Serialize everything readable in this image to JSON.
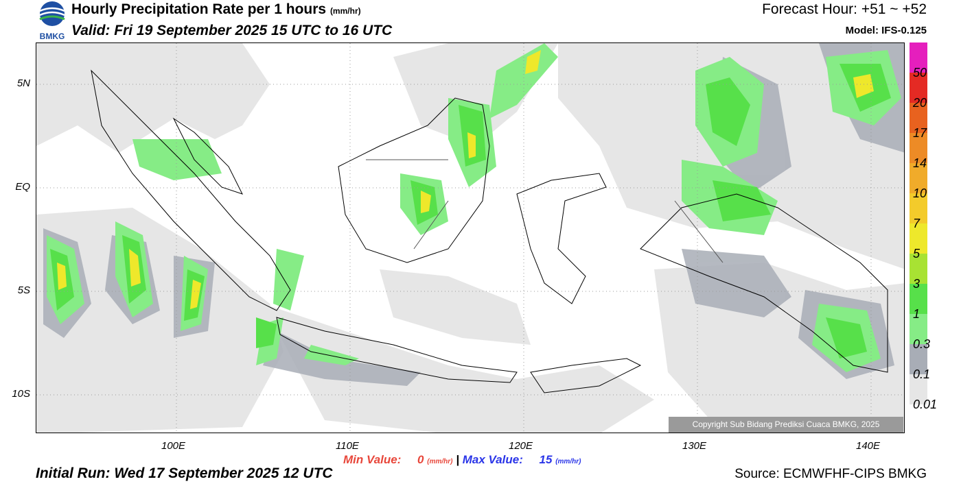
{
  "header": {
    "logo_text": "BMKG",
    "title": "Hourly Precipitation Rate per 1 hours",
    "title_unit": "(mm/hr)",
    "valid": "Valid: Fri 19 September 2025 15 UTC to 16 UTC",
    "forecast_hour": "Forecast Hour: +51 ~ +52",
    "model": "Model: IFS-0.125"
  },
  "map": {
    "lat_labels": [
      "5N",
      "EQ",
      "5S",
      "10S"
    ],
    "lon_labels": [
      "100E",
      "110E",
      "120E",
      "130E",
      "140E"
    ],
    "lon_range": [
      92,
      142
    ],
    "lat_range": [
      -12,
      6.9
    ],
    "copyright": "Copyright Sub Bidang Prediksi Cuaca BMKG, 2025"
  },
  "colorbar": {
    "levels": [
      "50",
      "20",
      "17",
      "14",
      "10",
      "7",
      "5",
      "3",
      "1",
      "0.3",
      "0.1",
      "0.01"
    ],
    "colors": [
      "#e51fbd",
      "#e42a24",
      "#e8621f",
      "#ed8b26",
      "#f0ab2a",
      "#f3cb2b",
      "#eee82b",
      "#a8e233",
      "#57e04a",
      "#86ec86",
      "#a8adb6",
      "#e6e6e6"
    ]
  },
  "footer": {
    "min_label": "Min Value:",
    "min_value": "0",
    "max_label": "Max Value:",
    "max_value": "15",
    "unit": "(mm/hr)",
    "separator": "|",
    "initial_run": "Initial Run: Wed 17 September 2025 12 UTC",
    "source": "Source: ECMWFHF-CIPS BMKG"
  }
}
